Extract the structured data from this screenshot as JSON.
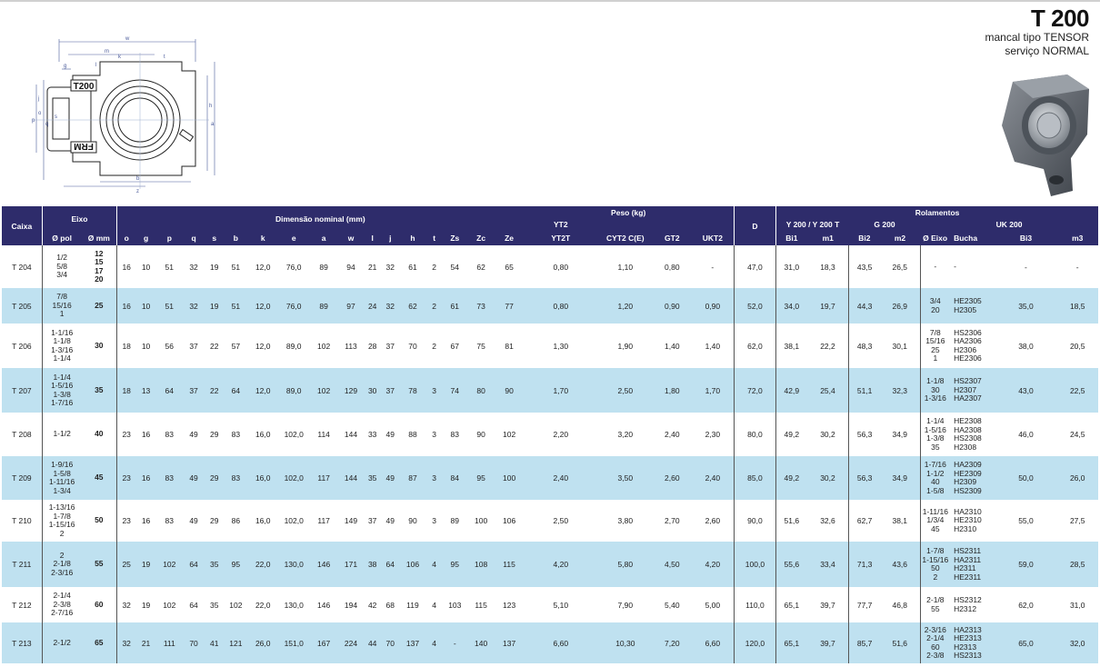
{
  "header": {
    "code": "T 200",
    "subtitle_1": "mancal tipo TENSOR",
    "subtitle_2": "serviço NORMAL"
  },
  "drawing": {
    "housing_label": "T200",
    "brand_label": "FRM",
    "dim_letters": [
      "w",
      "m",
      "g",
      "l",
      "k",
      "t",
      "h",
      "a",
      "b",
      "z",
      "o",
      "p",
      "q",
      "j",
      "s"
    ]
  },
  "table": {
    "group_headers": {
      "caixa": "Caixa",
      "eixo": "Eixo",
      "dimensao": "Dimensão nominal (mm)",
      "peso": "Peso (kg)",
      "d": "D",
      "rolamentos": "Rolamentos"
    },
    "subgroup_headers": {
      "yt2": "YT2",
      "y200": "Y 200 / Y 200 T",
      "g200": "G 200",
      "uk200": "UK 200"
    },
    "column_headers": [
      "Ø pol",
      "Ø mm",
      "o",
      "g",
      "p",
      "q",
      "s",
      "b",
      "k",
      "e",
      "a",
      "w",
      "l",
      "j",
      "h",
      "t",
      "Zs",
      "Zc",
      "Ze",
      "YT2T",
      "CYT2 C(E)",
      "GT2",
      "UKT2",
      "Bi1",
      "m1",
      "Bi2",
      "m2",
      "Ø Eixo",
      "Bucha",
      "Bi3",
      "m3"
    ],
    "rows": [
      {
        "caixa": "T 204",
        "pol": [
          "1/2",
          "5/8",
          "3/4"
        ],
        "mm": [
          "12",
          "15",
          "17",
          "20"
        ],
        "dims": [
          "16",
          "10",
          "51",
          "32",
          "19",
          "51",
          "12,0",
          "76,0",
          "89",
          "94",
          "21",
          "32",
          "61",
          "2",
          "54",
          "62",
          "65"
        ],
        "peso": [
          "0,80",
          "1,10",
          "0,80",
          "-"
        ],
        "D": "47,0",
        "bi1": "31,0",
        "m1": "18,3",
        "bi2": "43,5",
        "m2": "26,5",
        "eixo": [
          "-"
        ],
        "bucha": [
          "-"
        ],
        "bi3": "-",
        "m3": "-"
      },
      {
        "caixa": "T 205",
        "pol": [
          "7/8",
          "15/16",
          "1"
        ],
        "mm": [
          "25"
        ],
        "dims": [
          "16",
          "10",
          "51",
          "32",
          "19",
          "51",
          "12,0",
          "76,0",
          "89",
          "97",
          "24",
          "32",
          "62",
          "2",
          "61",
          "73",
          "77"
        ],
        "peso": [
          "0,80",
          "1,20",
          "0,90",
          "0,90"
        ],
        "D": "52,0",
        "bi1": "34,0",
        "m1": "19,7",
        "bi2": "44,3",
        "m2": "26,9",
        "eixo": [
          "3/4",
          "20"
        ],
        "bucha": [
          "HE2305",
          "H2305"
        ],
        "bi3": "35,0",
        "m3": "18,5"
      },
      {
        "caixa": "T 206",
        "pol": [
          "1-1/16",
          "1-1/8",
          "1-3/16",
          "1-1/4"
        ],
        "mm": [
          "30"
        ],
        "dims": [
          "18",
          "10",
          "56",
          "37",
          "22",
          "57",
          "12,0",
          "89,0",
          "102",
          "113",
          "28",
          "37",
          "70",
          "2",
          "67",
          "75",
          "81"
        ],
        "peso": [
          "1,30",
          "1,90",
          "1,40",
          "1,40"
        ],
        "D": "62,0",
        "bi1": "38,1",
        "m1": "22,2",
        "bi2": "48,3",
        "m2": "30,1",
        "eixo": [
          "7/8",
          "15/16",
          "25",
          "1"
        ],
        "bucha": [
          "HS2306",
          "HA2306",
          "H2306",
          "HE2306"
        ],
        "bi3": "38,0",
        "m3": "20,5"
      },
      {
        "caixa": "T 207",
        "pol": [
          "1-1/4",
          "1-5/16",
          "1-3/8",
          "1-7/16"
        ],
        "mm": [
          "35"
        ],
        "dims": [
          "18",
          "13",
          "64",
          "37",
          "22",
          "64",
          "12,0",
          "89,0",
          "102",
          "129",
          "30",
          "37",
          "78",
          "3",
          "74",
          "80",
          "90"
        ],
        "peso": [
          "1,70",
          "2,50",
          "1,80",
          "1,70"
        ],
        "D": "72,0",
        "bi1": "42,9",
        "m1": "25,4",
        "bi2": "51,1",
        "m2": "32,3",
        "eixo": [
          "1-1/8",
          "30",
          "1-3/16"
        ],
        "bucha": [
          "HS2307",
          "H2307",
          "HA2307"
        ],
        "bi3": "43,0",
        "m3": "22,5"
      },
      {
        "caixa": "T 208",
        "pol": [
          "1-1/2"
        ],
        "mm": [
          "40"
        ],
        "dims": [
          "23",
          "16",
          "83",
          "49",
          "29",
          "83",
          "16,0",
          "102,0",
          "114",
          "144",
          "33",
          "49",
          "88",
          "3",
          "83",
          "90",
          "102"
        ],
        "peso": [
          "2,20",
          "3,20",
          "2,40",
          "2,30"
        ],
        "D": "80,0",
        "bi1": "49,2",
        "m1": "30,2",
        "bi2": "56,3",
        "m2": "34,9",
        "eixo": [
          "1-1/4",
          "1-5/16",
          "1-3/8",
          "35"
        ],
        "bucha": [
          "HE2308",
          "HA2308",
          "HS2308",
          "H2308"
        ],
        "bi3": "46,0",
        "m3": "24,5"
      },
      {
        "caixa": "T 209",
        "pol": [
          "1-9/16",
          "1-5/8",
          "1-11/16",
          "1-3/4"
        ],
        "mm": [
          "45"
        ],
        "dims": [
          "23",
          "16",
          "83",
          "49",
          "29",
          "83",
          "16,0",
          "102,0",
          "117",
          "144",
          "35",
          "49",
          "87",
          "3",
          "84",
          "95",
          "100"
        ],
        "peso": [
          "2,40",
          "3,50",
          "2,60",
          "2,40"
        ],
        "D": "85,0",
        "bi1": "49,2",
        "m1": "30,2",
        "bi2": "56,3",
        "m2": "34,9",
        "eixo": [
          "1-7/16",
          "1-1/2",
          "40",
          "1-5/8"
        ],
        "bucha": [
          "HA2309",
          "HE2309",
          "H2309",
          "HS2309"
        ],
        "bi3": "50,0",
        "m3": "26,0"
      },
      {
        "caixa": "T 210",
        "pol": [
          "1-13/16",
          "1-7/8",
          "1-15/16",
          "2"
        ],
        "mm": [
          "50"
        ],
        "dims": [
          "23",
          "16",
          "83",
          "49",
          "29",
          "86",
          "16,0",
          "102,0",
          "117",
          "149",
          "37",
          "49",
          "90",
          "3",
          "89",
          "100",
          "106"
        ],
        "peso": [
          "2,50",
          "3,80",
          "2,70",
          "2,60"
        ],
        "D": "90,0",
        "bi1": "51,6",
        "m1": "32,6",
        "bi2": "62,7",
        "m2": "38,1",
        "eixo": [
          "1-11/16",
          "1/3/4",
          "45"
        ],
        "bucha": [
          "HA2310",
          "HE2310",
          "H2310"
        ],
        "bi3": "55,0",
        "m3": "27,5"
      },
      {
        "caixa": "T 211",
        "pol": [
          "2",
          "2-1/8",
          "2-3/16"
        ],
        "mm": [
          "55"
        ],
        "dims": [
          "25",
          "19",
          "102",
          "64",
          "35",
          "95",
          "22,0",
          "130,0",
          "146",
          "171",
          "38",
          "64",
          "106",
          "4",
          "95",
          "108",
          "115"
        ],
        "peso": [
          "4,20",
          "5,80",
          "4,50",
          "4,20"
        ],
        "D": "100,0",
        "bi1": "55,6",
        "m1": "33,4",
        "bi2": "71,3",
        "m2": "43,6",
        "eixo": [
          "1-7/8",
          "1-15/16",
          "50",
          "2"
        ],
        "bucha": [
          "HS2311",
          "HA2311",
          "H2311",
          "HE2311"
        ],
        "bi3": "59,0",
        "m3": "28,5"
      },
      {
        "caixa": "T 212",
        "pol": [
          "2-1/4",
          "2-3/8",
          "2-7/16"
        ],
        "mm": [
          "60"
        ],
        "dims": [
          "32",
          "19",
          "102",
          "64",
          "35",
          "102",
          "22,0",
          "130,0",
          "146",
          "194",
          "42",
          "68",
          "119",
          "4",
          "103",
          "115",
          "123"
        ],
        "peso": [
          "5,10",
          "7,90",
          "5,40",
          "5,00"
        ],
        "D": "110,0",
        "bi1": "65,1",
        "m1": "39,7",
        "bi2": "77,7",
        "m2": "46,8",
        "eixo": [
          "2-1/8",
          "55"
        ],
        "bucha": [
          "HS2312",
          "H2312"
        ],
        "bi3": "62,0",
        "m3": "31,0"
      },
      {
        "caixa": "T 213",
        "pol": [
          "2-1/2"
        ],
        "mm": [
          "65"
        ],
        "dims": [
          "32",
          "21",
          "111",
          "70",
          "41",
          "121",
          "26,0",
          "151,0",
          "167",
          "224",
          "44",
          "70",
          "137",
          "4",
          "-",
          "140",
          "137"
        ],
        "peso": [
          "6,60",
          "10,30",
          "7,20",
          "6,60"
        ],
        "D": "120,0",
        "bi1": "65,1",
        "m1": "39,7",
        "bi2": "85,7",
        "m2": "51,6",
        "eixo": [
          "2-3/16",
          "2-1/4",
          "60",
          "2-3/8"
        ],
        "bucha": [
          "HA2313",
          "HE2313",
          "H2313",
          "HS2313"
        ],
        "bi3": "65,0",
        "m3": "32,0"
      }
    ]
  }
}
